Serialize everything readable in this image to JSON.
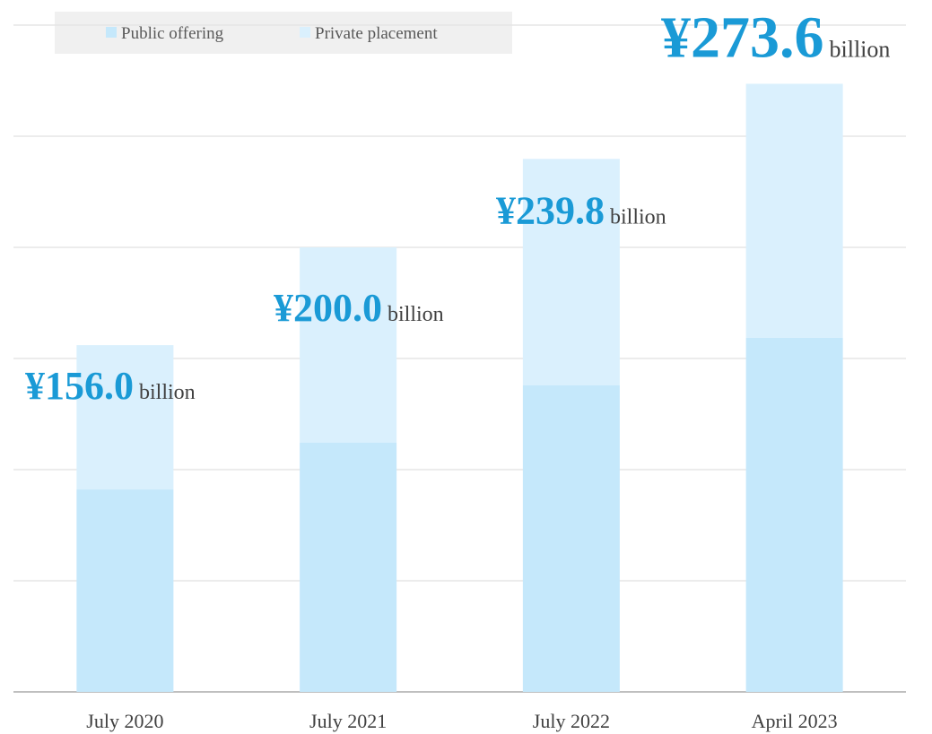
{
  "chart_data": {
    "type": "stacked_bar",
    "categories": [
      "July 2020",
      "July 2021",
      "July 2022",
      "April 2023"
    ],
    "series": [
      {
        "name": "Public offering",
        "color": "#c5e8fb",
        "values": [
          91.1,
          112.1,
          137.9,
          159.3
        ]
      },
      {
        "name": "Private placement",
        "color": "#daf0fd",
        "values": [
          64.9,
          87.9,
          101.9,
          114.3
        ]
      }
    ],
    "totals": [
      156.0,
      200.0,
      239.8,
      273.6
    ],
    "total_labels": [
      "¥156.0",
      "¥200.0",
      "¥239.8",
      "¥273.6"
    ],
    "total_unit": "billion",
    "ylim": [
      0,
      300
    ],
    "yticks": [
      0,
      50,
      100,
      150,
      200,
      250,
      300
    ],
    "grid": true
  }
}
